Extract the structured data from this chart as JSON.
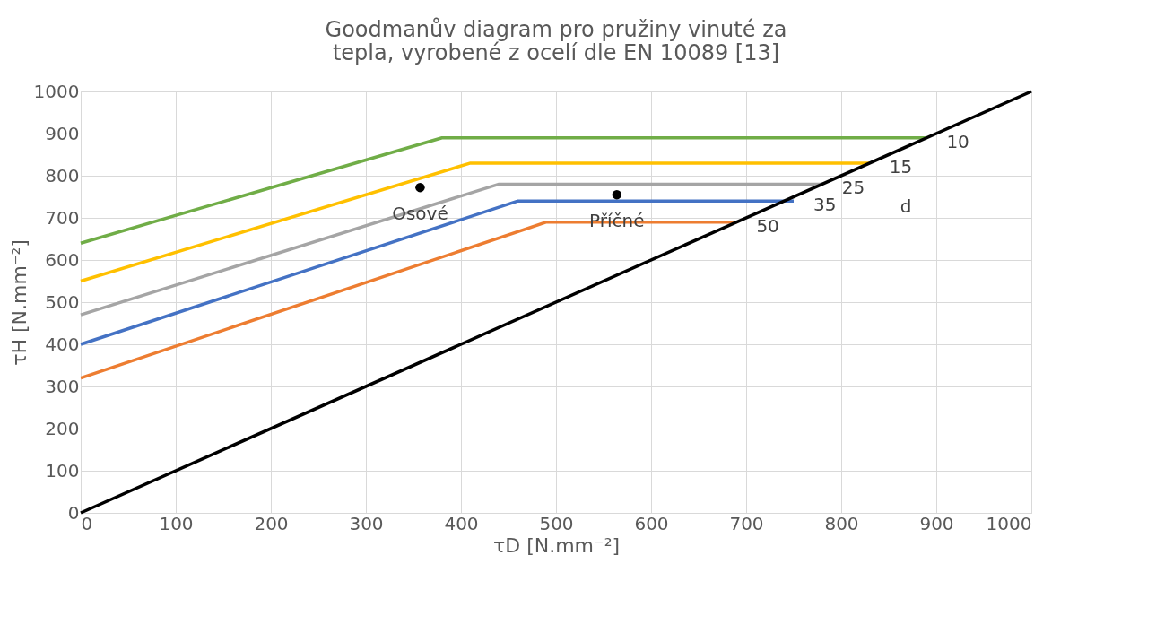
{
  "chart_data": {
    "type": "line",
    "title": "Goodmanův diagram pro pružiny vinuté za tepla, vyrobené z ocelí dle EN 10089 [13]",
    "xlabel": "τD [N.mm⁻²]",
    "ylabel": "τH [N.mm⁻²]",
    "xlim": [
      0,
      1000
    ],
    "ylim": [
      0,
      1000
    ],
    "xticks": [
      0,
      100,
      200,
      300,
      400,
      500,
      600,
      700,
      800,
      900,
      1000
    ],
    "yticks": [
      0,
      100,
      200,
      300,
      400,
      500,
      600,
      700,
      800,
      900,
      1000
    ],
    "grid": true,
    "marker": "none",
    "line_style": "solid",
    "series": [
      {
        "name": "10",
        "color": "#70ad47",
        "x": [
          0,
          380,
          890
        ],
        "values": [
          640,
          890,
          890
        ]
      },
      {
        "name": "15",
        "color": "#ffc000",
        "x": [
          0,
          410,
          830
        ],
        "values": [
          550,
          830,
          830
        ]
      },
      {
        "name": "25",
        "color": "#a5a5a5",
        "x": [
          0,
          440,
          780
        ],
        "values": [
          470,
          780,
          780
        ]
      },
      {
        "name": "35",
        "color": "#4472c4",
        "x": [
          0,
          460,
          750
        ],
        "values": [
          400,
          740,
          740
        ]
      },
      {
        "name": "50",
        "color": "#ed7d31",
        "x": [
          0,
          490,
          690
        ],
        "values": [
          320,
          690,
          690
        ]
      },
      {
        "color": "#000000",
        "x": [
          0,
          1000
        ],
        "values": [
          0,
          1000
        ]
      },
      {
        "type": "scatter",
        "marker": "circle",
        "color": "#000000",
        "x": [
          357,
          564
        ],
        "values": [
          772,
          755
        ]
      }
    ],
    "annotations": [
      "d",
      {
        "text": "Osové",
        "x": 357,
        "y": 709
      },
      {
        "text": "Příčné",
        "x": 564,
        "y": 692
      }
    ]
  }
}
